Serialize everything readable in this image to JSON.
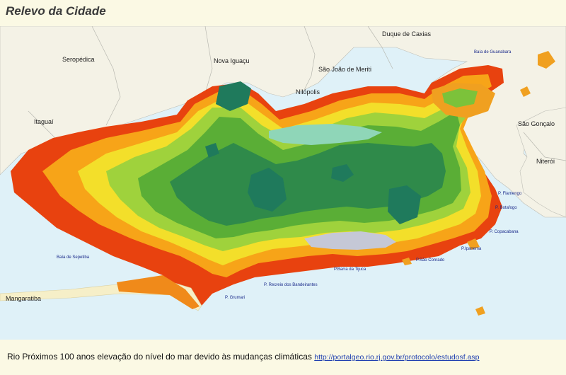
{
  "title": "Relevo da Cidade",
  "colors": {
    "sea": "#dff1f8",
    "land": "#f4f2e6",
    "low": "#e8420f",
    "mid_low": "#f7a418",
    "yellow": "#f3df2a",
    "green_light": "#9fd23c",
    "green": "#5aae36",
    "green_dark": "#2f8a4a",
    "teal": "#1f7a5c",
    "lagoon": "#c5c8d6"
  },
  "places": {
    "seropedica": "Seropédica",
    "nova_iguacu": "Nova Iguaçu",
    "duque_de_caxias": "Duque de Caxias",
    "sao_joao_de_meriti": "São João de Meriti",
    "nilopolis": "Nilópolis",
    "itaguai": "Itaguaí",
    "sao_goncalo": "São Gonçalo",
    "niteroi": "Niterói",
    "mangaratiba": "Mangaratiba"
  },
  "bays": {
    "guanabara": "Baía de Guanabara",
    "sepetiba": "Baía de Sepetiba"
  },
  "beaches": {
    "flamengo": "P. Flamengo",
    "botafogo": "P. Botafogo",
    "copacabana": "P. Copacabana",
    "ipanema": "P.Ipanema",
    "sao_conrado": "P.São Conrado",
    "barra_da_tijuca": "P.Barra da Tijuca",
    "recreio": "P. Recreio dos Bandeirantes",
    "grumari": "P. Grumari"
  },
  "caption": {
    "text": "Rio Próximos 100 anos elevação do nível do mar devido às mudanças climáticas",
    "link": "http://portalgeo.rio.rj.gov.br/protocolo/estudosf.asp"
  }
}
